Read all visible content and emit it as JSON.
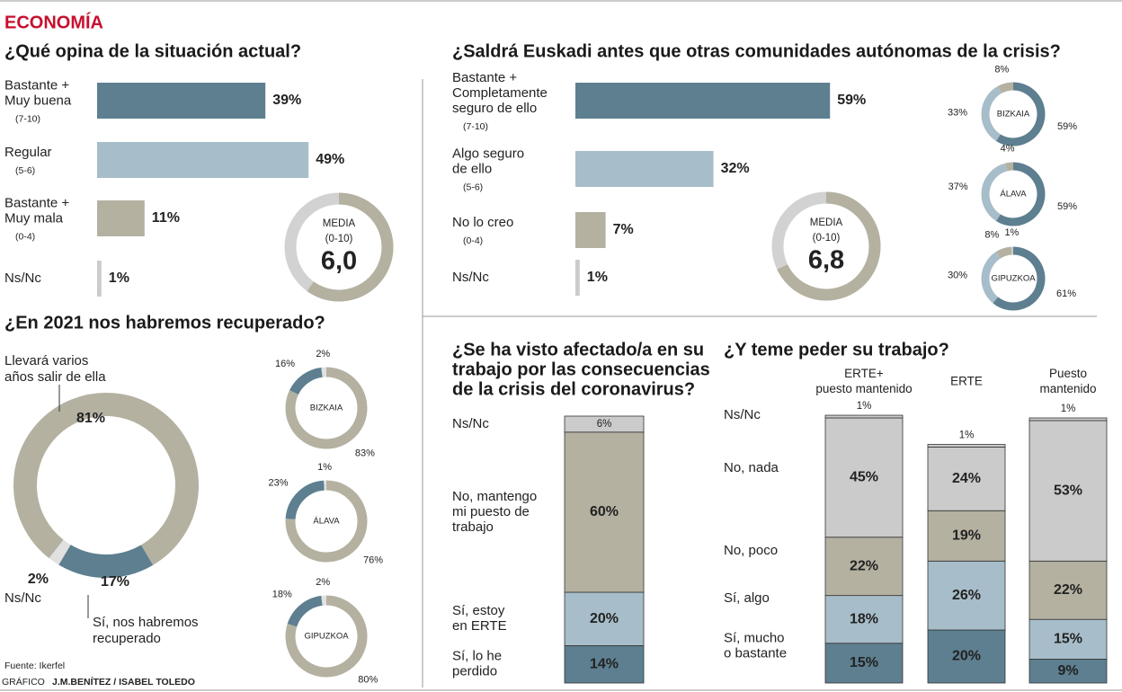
{
  "header": {
    "section": "ECONOMÍA"
  },
  "footer": {
    "source": "Fuente: Ikerfel",
    "credit_prefix": "GRÁFICO",
    "credit": "J.M.BENÍTEZ / ISABEL TOLEDO"
  },
  "chart_data": [
    {
      "type": "bar",
      "orientation": "horizontal",
      "title": [
        "¿Qué opina de la situación actual?"
      ],
      "categories": [
        [
          "Bastante +",
          "Muy buena"
        ],
        [
          "Regular"
        ],
        [
          "Bastante +",
          "Muy mala"
        ],
        [
          "Ns/Nc"
        ]
      ],
      "category_notes": [
        "(7-10)",
        "(5-6)",
        "(0-4)",
        null
      ],
      "values": [
        39,
        49,
        11,
        1
      ],
      "value_labels": [
        "39%",
        "49%",
        "11%",
        "1%"
      ],
      "colors": [
        "#5d7f90",
        "#a7bdc9",
        "#b4b1a1",
        "#cbcbcb"
      ],
      "xlim": [
        0,
        100
      ],
      "media": {
        "label": "MEDIA",
        "scale": "(0-10)",
        "value": 6.0,
        "value_label": "6,0",
        "lim": [
          0,
          10
        ]
      }
    },
    {
      "type": "bar",
      "orientation": "horizontal",
      "title": [
        "¿Saldrá Euskadi antes que otras comunidades autónomas de la crisis?"
      ],
      "categories": [
        [
          "Bastante +",
          "Completamente",
          "seguro de ello"
        ],
        [
          "Algo seguro",
          "de ello"
        ],
        [
          "No lo creo"
        ],
        [
          "Ns/Nc"
        ]
      ],
      "category_notes": [
        "(7-10)",
        "(5-6)",
        "(0-4)",
        null
      ],
      "values": [
        59,
        32,
        7,
        1
      ],
      "value_labels": [
        "59%",
        "32%",
        "7%",
        "1%"
      ],
      "colors": [
        "#5d7f90",
        "#a7bdc9",
        "#b4b1a1",
        "#cbcbcb"
      ],
      "xlim": [
        0,
        100
      ],
      "media": {
        "label": "MEDIA",
        "scale": "(0-10)",
        "value": 6.8,
        "value_label": "6,8",
        "lim": [
          0,
          10
        ]
      }
    },
    {
      "type": "donut",
      "colors": [
        "#5d7f90",
        "#a7bdc9",
        "#b4b1a1",
        "#cbcbcb"
      ],
      "items": [
        {
          "name": "BIZKAIA",
          "values": [
            59,
            33,
            8
          ],
          "value_labels": [
            "59%",
            "33%",
            "8%"
          ]
        },
        {
          "name": "ÁLAVA",
          "values": [
            59,
            37,
            4
          ],
          "value_labels": [
            "59%",
            "37%",
            "4%"
          ]
        },
        {
          "name": "GIPUZKOA",
          "values": [
            61,
            30,
            8,
            1
          ],
          "value_labels": [
            "61%",
            "30%",
            "8%",
            "1%"
          ]
        }
      ]
    },
    {
      "type": "donut",
      "title": [
        "¿En 2021 nos habremos recuperado?"
      ],
      "categories": [
        [
          "Llevará varios",
          "años salir de ella"
        ],
        [
          "Sí, nos habremos",
          "recuperado"
        ],
        [
          "Ns/Nc"
        ]
      ],
      "values": [
        81,
        17,
        2
      ],
      "value_labels": [
        "81%",
        "17%",
        "2%"
      ],
      "colors": [
        "#b4b1a1",
        "#5d7f90",
        "#e1e1e1"
      ],
      "provinces": [
        {
          "name": "BIZKAIA",
          "values": [
            83,
            16,
            2
          ],
          "value_labels": [
            "83%",
            "16%",
            "2%"
          ]
        },
        {
          "name": "ÁLAVA",
          "values": [
            76,
            23,
            1
          ],
          "value_labels": [
            "76%",
            "23%",
            "1%"
          ]
        },
        {
          "name": "GIPUZKOA",
          "values": [
            80,
            18,
            2
          ],
          "value_labels": [
            "80%",
            "18%",
            "2%"
          ]
        }
      ]
    },
    {
      "type": "stacked_bar",
      "title": [
        "¿Se ha visto afectado/a en su",
        "trabajo por las consecuencias",
        "de la crisis del coronavirus?"
      ],
      "categories": [
        [
          "Ns/Nc"
        ],
        [
          "No, mantengo",
          "mi puesto de",
          "trabajo"
        ],
        [
          "Sí, estoy",
          "en ERTE"
        ],
        [
          "Sí, lo he",
          "perdido"
        ]
      ],
      "values": [
        6,
        60,
        20,
        14
      ],
      "value_labels": [
        "6%",
        "60%",
        "20%",
        "14%"
      ],
      "colors": [
        "#cbcbcb",
        "#b4b1a1",
        "#a7bdc9",
        "#5d7f90"
      ],
      "ylim": [
        0,
        100
      ]
    },
    {
      "type": "stacked_bar",
      "title": [
        "¿Y teme peder su trabajo?"
      ],
      "categories": [
        [
          "ERTE+",
          "puesto mantenido"
        ],
        [
          "ERTE"
        ],
        [
          "Puesto",
          "mantenido"
        ]
      ],
      "ylim": [
        0,
        100
      ],
      "series": [
        {
          "name": [
            "Ns/Nc"
          ],
          "color": "#cbcbcb",
          "values": [
            1,
            1,
            1
          ],
          "value_labels": [
            "1%",
            "1%",
            "1%"
          ]
        },
        {
          "name": [
            "No, nada"
          ],
          "color": "#cbcbcb",
          "values": [
            45,
            24,
            53
          ],
          "value_labels": [
            "45%",
            "24%",
            "53%"
          ]
        },
        {
          "name": [
            "No, poco"
          ],
          "color": "#b4b1a1",
          "values": [
            22,
            19,
            22
          ],
          "value_labels": [
            "22%",
            "19%",
            "22%"
          ]
        },
        {
          "name": [
            "Sí, algo"
          ],
          "color": "#a7bdc9",
          "values": [
            18,
            26,
            15
          ],
          "value_labels": [
            "18%",
            "26%",
            "15%"
          ]
        },
        {
          "name": [
            "Sí, mucho",
            "o bastante"
          ],
          "color": "#5d7f90",
          "values": [
            15,
            20,
            9
          ],
          "value_labels": [
            "15%",
            "20%",
            "9%"
          ]
        }
      ]
    }
  ]
}
